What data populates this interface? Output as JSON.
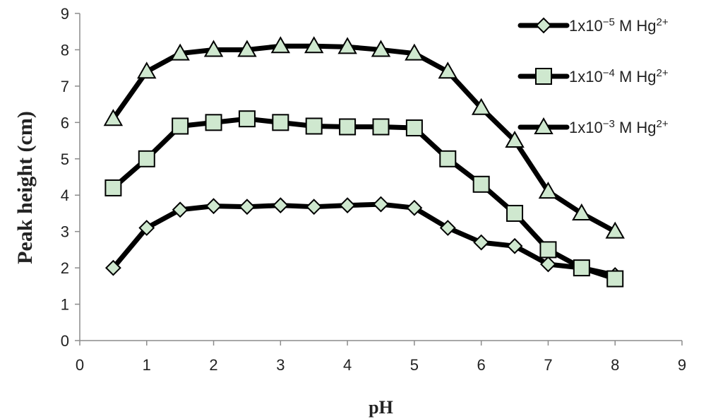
{
  "chart_data": {
    "type": "line",
    "title": "",
    "xlabel": "pH",
    "ylabel": "Peak height (cm)",
    "xlim": [
      0,
      9
    ],
    "ylim": [
      0,
      9
    ],
    "xticks": [
      "0",
      "1",
      "2",
      "3",
      "4",
      "5",
      "6",
      "7",
      "8",
      "9"
    ],
    "yticks": [
      "0",
      "1",
      "2",
      "3",
      "4",
      "5",
      "6",
      "7",
      "8",
      "9"
    ],
    "grid": false,
    "legend_position": "top-right",
    "colors": {
      "line": "#000000",
      "marker_fill": "#cfe8cf",
      "marker_stroke": "#000000"
    },
    "series": [
      {
        "name": "1x10^-5 M Hg^2+",
        "legend_base": "1x10",
        "legend_exp": "−5",
        "legend_mid": " M Hg",
        "legend_ion": "2+",
        "marker": "diamond",
        "x": [
          0.5,
          1,
          1.5,
          2,
          2.5,
          3,
          3.5,
          4,
          4.5,
          5,
          5.5,
          6,
          6.5,
          7,
          7.5,
          8
        ],
        "y": [
          2.0,
          3.1,
          3.6,
          3.7,
          3.68,
          3.72,
          3.68,
          3.72,
          3.75,
          3.65,
          3.1,
          2.7,
          2.6,
          2.1,
          2.0,
          1.8
        ]
      },
      {
        "name": "1x10^-4 M Hg^2+",
        "legend_base": "1x10",
        "legend_exp": "−4",
        "legend_mid": " M Hg",
        "legend_ion": "2+",
        "marker": "square",
        "x": [
          0.5,
          1,
          1.5,
          2,
          2.5,
          3,
          3.5,
          4,
          4.5,
          5,
          5.5,
          6,
          6.5,
          7,
          7.5,
          8
        ],
        "y": [
          4.2,
          5.0,
          5.9,
          6.0,
          6.1,
          6.0,
          5.9,
          5.88,
          5.88,
          5.85,
          5.0,
          4.3,
          3.5,
          2.5,
          2.0,
          1.7
        ]
      },
      {
        "name": "1x10^-3 M Hg^2+",
        "legend_base": "1x10",
        "legend_exp": "−3",
        "legend_mid": " M Hg",
        "legend_ion": "2+",
        "marker": "triangle",
        "x": [
          0.5,
          1,
          1.5,
          2,
          2.5,
          3,
          3.5,
          4,
          4.5,
          5,
          5.5,
          6,
          6.5,
          7,
          7.5,
          8
        ],
        "y": [
          6.1,
          7.4,
          7.9,
          8.0,
          8.0,
          8.1,
          8.1,
          8.08,
          8.0,
          7.9,
          7.4,
          6.4,
          5.5,
          4.1,
          3.5,
          3.0
        ]
      }
    ]
  }
}
